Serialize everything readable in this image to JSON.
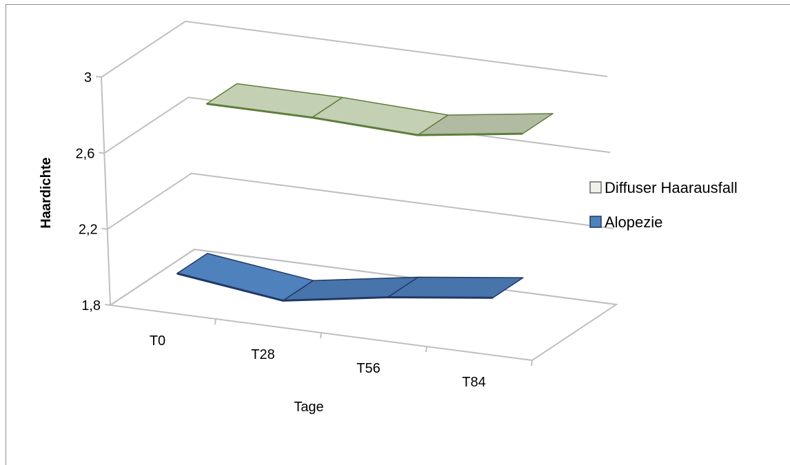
{
  "chart_data": {
    "type": "area",
    "view": "3d",
    "title": "",
    "xlabel": "Tage",
    "ylabel": "Haardichte",
    "categories": [
      "T0",
      "T28",
      "T56",
      "T84"
    ],
    "yticks": [
      "1,8",
      "2,2",
      "2,6",
      "3"
    ],
    "ylim": [
      1.8,
      3.0
    ],
    "grid": true,
    "legend_position": "right",
    "series": [
      {
        "name": "Diffuser Haarausfall",
        "values": [
          2.72,
          2.72,
          2.7,
          2.78
        ],
        "color": "#c4d0b4",
        "edge_color": "#5e7d3b"
      },
      {
        "name": "Alopezie",
        "values": [
          1.95,
          1.88,
          1.97,
          2.04
        ],
        "color": "#4f81bd",
        "edge_color": "#203864"
      }
    ]
  }
}
